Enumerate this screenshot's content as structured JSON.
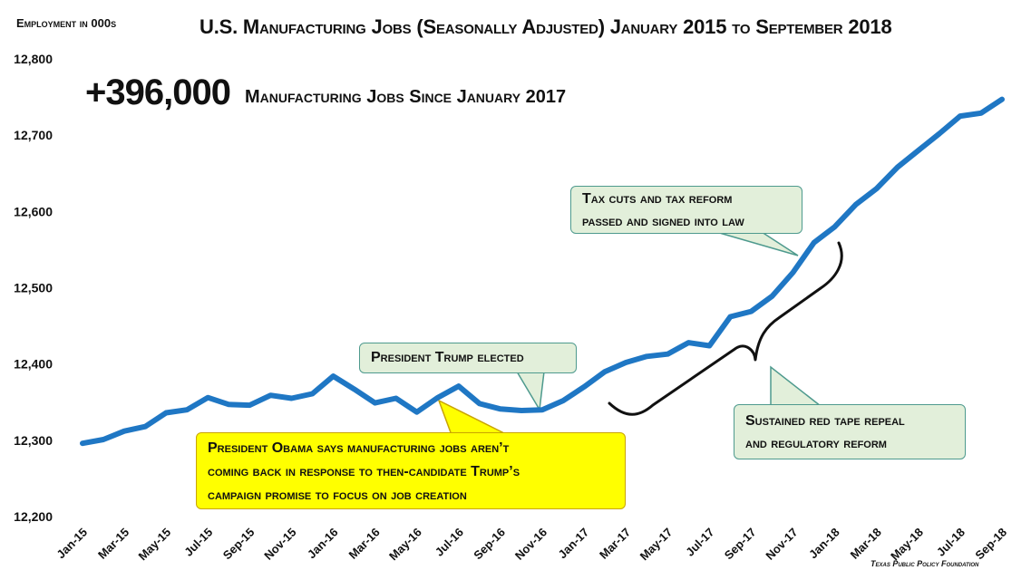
{
  "chart_data": {
    "type": "line",
    "title": "U.S. Manufacturing Jobs (Seasonally Adjusted) January 2015 to September 2018",
    "ylabel": "Employment in 000s",
    "xlabel": "",
    "ylim": [
      12200,
      12800
    ],
    "yticks": [
      12200,
      12300,
      12400,
      12500,
      12600,
      12700,
      12800
    ],
    "ytick_labels": [
      "12,200",
      "12,300",
      "12,400",
      "12,500",
      "12,600",
      "12,700",
      "12,800"
    ],
    "x": [
      "Jan-15",
      "Feb-15",
      "Mar-15",
      "Apr-15",
      "May-15",
      "Jun-15",
      "Jul-15",
      "Aug-15",
      "Sep-15",
      "Oct-15",
      "Nov-15",
      "Dec-15",
      "Jan-16",
      "Feb-16",
      "Mar-16",
      "Apr-16",
      "May-16",
      "Jun-16",
      "Jul-16",
      "Aug-16",
      "Sep-16",
      "Oct-16",
      "Nov-16",
      "Dec-16",
      "Jan-17",
      "Feb-17",
      "Mar-17",
      "Apr-17",
      "May-17",
      "Jun-17",
      "Jul-17",
      "Aug-17",
      "Sep-17",
      "Oct-17",
      "Nov-17",
      "Dec-17",
      "Jan-18",
      "Feb-18",
      "Mar-18",
      "Apr-18",
      "May-18",
      "Jun-18",
      "Jul-18",
      "Aug-18",
      "Sep-18"
    ],
    "xtick_labels": [
      "Jan-15",
      "Mar-15",
      "May-15",
      "Jul-15",
      "Sep-15",
      "Nov-15",
      "Jan-16",
      "Mar-16",
      "May-16",
      "Jul-16",
      "Sep-16",
      "Nov-16",
      "Jan-17",
      "Mar-17",
      "May-17",
      "Jul-17",
      "Sep-17",
      "Nov-17",
      "Jan-18",
      "Mar-18",
      "May-18",
      "Jul-18",
      "Sep-18"
    ],
    "series": [
      {
        "color": "#1f77c4",
        "values": [
          12296,
          12301,
          12312,
          12318,
          12336,
          12340,
          12356,
          12347,
          12346,
          12359,
          12355,
          12361,
          12384,
          12367,
          12349,
          12355,
          12337,
          12356,
          12371,
          12348,
          12341,
          12339,
          12340,
          12352,
          12370,
          12390,
          12402,
          12410,
          12413,
          12428,
          12424,
          12462,
          12469,
          12489,
          12520,
          12559,
          12580,
          12609,
          12630,
          12658,
          12680,
          12702,
          12725,
          12729,
          12747
        ]
      }
    ],
    "grid": false,
    "legend": "none"
  },
  "headline": {
    "number": "+396,000",
    "caption": "Manufacturing Jobs Since January 2017"
  },
  "annotations": {
    "trump_elected": "President Trump elected",
    "tax_line1": "Tax cuts and tax reform",
    "tax_line2": "passed and signed into law",
    "redtape_line1": "Sustained red tape repeal",
    "redtape_line2": "and regulatory reform",
    "obama_line1": "President Obama says manufacturing jobs aren’t",
    "obama_line2": "coming back in response to then-candidate Trump’s",
    "obama_line3": "campaign promise to focus on job creation"
  },
  "source": "Texas Public Policy Foundation",
  "colors": {
    "line": "#1f77c4",
    "callout_green": "#e2efda",
    "callout_yellow": "#ffff00"
  }
}
